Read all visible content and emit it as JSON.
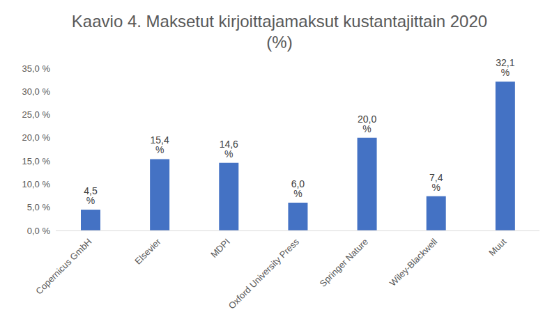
{
  "chart_data": {
    "type": "bar",
    "title": "Kaavio 4. Maksetut kirjoittajamaksut kustantajittain 2020 (%)",
    "categories": [
      "Copernicus GmbH",
      "Elsevier",
      "MDPI",
      "Oxford University Press",
      "Springer Nature",
      "Wiley-Blackwell",
      "Muut"
    ],
    "values": [
      4.5,
      15.4,
      14.6,
      6.0,
      20.0,
      7.4,
      32.1
    ],
    "value_labels": [
      "4,5 %",
      "15,4 %",
      "14,6 %",
      "6,0 %",
      "20,0 %",
      "7,4 %",
      "32,1 %"
    ],
    "data_labels": true,
    "color": "#4472c4",
    "ylim": [
      0,
      35
    ],
    "yticks": [
      {
        "value": 0,
        "label": "0,0 %"
      },
      {
        "value": 5,
        "label": "5,0 %"
      },
      {
        "value": 10,
        "label": "10,0 %"
      },
      {
        "value": 15,
        "label": "15,0 %"
      },
      {
        "value": 20,
        "label": "20,0 %"
      },
      {
        "value": 25,
        "label": "25,0 %"
      },
      {
        "value": 30,
        "label": "30,0 %"
      },
      {
        "value": 35,
        "label": "35,0 %"
      }
    ],
    "grid": false
  }
}
